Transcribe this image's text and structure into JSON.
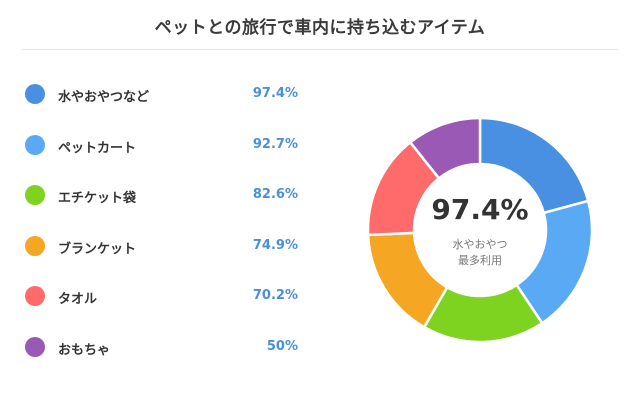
{
  "chart_data": {
    "type": "pie",
    "title": "ペットとの旅行で車内に持ち込むアイテム",
    "categories": [
      "水やおやつなど",
      "ペットカート",
      "エチケット袋",
      "ブランケット",
      "タオル",
      "おもちゃ"
    ],
    "values": [
      97.4,
      92.7,
      82.6,
      74.9,
      70.2,
      50
    ],
    "value_labels": [
      "97.4%",
      "92.7%",
      "82.6%",
      "74.9%",
      "70.2%",
      "50%"
    ],
    "colors": [
      "#4a90e2",
      "#5aa9f5",
      "#7ed321",
      "#f5a623",
      "#ff6b6b",
      "#9b59b6"
    ],
    "legend_position": "left",
    "center": {
      "value": "97.4%",
      "line1": "水やおやつ",
      "line2": "最多利用"
    }
  }
}
